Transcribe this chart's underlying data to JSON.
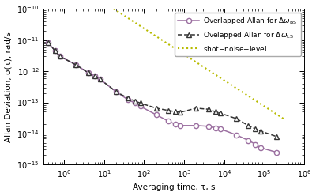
{
  "xlabel": "Averaging time, τ, s",
  "ylabel": "Allan Deviation, σ(τ), rad/s",
  "xlim": [
    0.3,
    1000000.0
  ],
  "ylim": [
    1e-15,
    1e-10
  ],
  "bs_tau": [
    0.4,
    0.6,
    0.8,
    2,
    4,
    6,
    8,
    20,
    40,
    60,
    80,
    200,
    400,
    600,
    800,
    2000,
    4000,
    6000,
    8000,
    20000,
    40000,
    60000,
    80000,
    200000
  ],
  "bs_sigma": [
    8.5e-12,
    4.5e-12,
    3e-12,
    1.6e-12,
    9e-13,
    7e-13,
    5.5e-13,
    2.2e-13,
    1.2e-13,
    9.5e-14,
    7.5e-14,
    4e-14,
    2.5e-14,
    2e-14,
    1.8e-14,
    1.8e-14,
    1.7e-14,
    1.5e-14,
    1.4e-14,
    9e-15,
    6e-15,
    4.5e-15,
    3.5e-15,
    2.5e-15
  ],
  "ls_tau": [
    0.4,
    0.6,
    0.8,
    2,
    4,
    6,
    8,
    20,
    40,
    60,
    80,
    200,
    400,
    600,
    800,
    2000,
    4000,
    6000,
    8000,
    20000,
    40000,
    60000,
    80000,
    200000
  ],
  "ls_sigma": [
    8.5e-12,
    4.5e-12,
    3e-12,
    1.6e-12,
    9e-13,
    7e-13,
    5.5e-13,
    2.2e-13,
    1.35e-13,
    1.1e-13,
    9.5e-14,
    6.5e-14,
    5.5e-14,
    5e-14,
    4.8e-14,
    6.5e-14,
    6e-14,
    5e-14,
    4.5e-14,
    3e-14,
    1.8e-14,
    1.4e-14,
    1.2e-14,
    8e-15
  ],
  "shot_tau": [
    0.3,
    300000.0
  ],
  "shot_sigma": [
    3e-09,
    3e-14
  ],
  "bs_color": "#9b6fa0",
  "ls_color": "#333333",
  "shot_color": "#b8bb00",
  "bg_color": "#ffffff",
  "legend_bs": "Overlapped Allan for $\\Delta\\omega_{\\mathrm{BS}}$",
  "legend_ls": "Ovelapped Allan for $\\Delta\\omega_{\\mathrm{LS}}$",
  "legend_shot": "shot$-$noise$-$level"
}
